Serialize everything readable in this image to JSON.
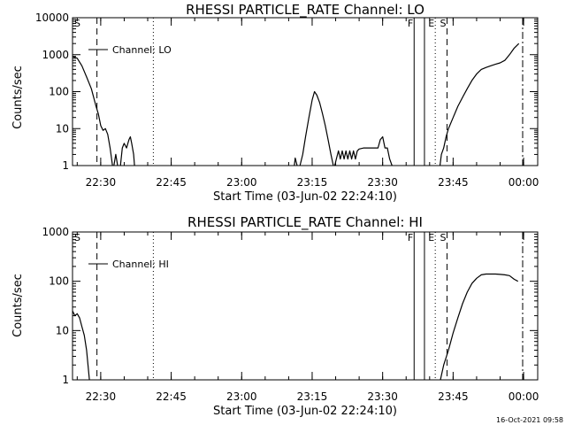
{
  "chart_data": [
    {
      "type": "line",
      "title": "RHESSI PARTICLE_RATE Channel: LO",
      "xlabel": "Start Time (03-Jun-02 22:24:10)",
      "ylabel": "Counts/sec",
      "yscale": "log",
      "ylim": [
        1,
        10000
      ],
      "xlim_minutes": [
        0,
        99
      ],
      "x_ticks": [
        {
          "t": 6,
          "label": "22:30"
        },
        {
          "t": 21,
          "label": "22:45"
        },
        {
          "t": 36,
          "label": "23:00"
        },
        {
          "t": 51,
          "label": "23:15"
        },
        {
          "t": 66,
          "label": "23:30"
        },
        {
          "t": 81,
          "label": "23:45"
        },
        {
          "t": 96,
          "label": "00:00"
        }
      ],
      "y_ticks": [
        {
          "v": 1,
          "label": "1"
        },
        {
          "v": 10,
          "label": "10"
        },
        {
          "v": 100,
          "label": "100"
        },
        {
          "v": 1000,
          "label": "1000"
        },
        {
          "v": 10000,
          "label": "10000"
        }
      ],
      "legend": {
        "label": "Channel: LO",
        "position": "top-left"
      },
      "grid": false,
      "markers": [
        {
          "t": 0,
          "label": "S",
          "style": "solid"
        },
        {
          "t": 5.2,
          "label": "",
          "style": "dashed"
        },
        {
          "t": 17.2,
          "label": "",
          "style": "dotted"
        },
        {
          "t": 72.7,
          "label": "F",
          "style": "solid"
        },
        {
          "t": 74.9,
          "label": "",
          "style": "solid"
        },
        {
          "t": 77.2,
          "label": "E",
          "style": "dotted"
        },
        {
          "t": 79.7,
          "label": "S",
          "style": "dashed"
        },
        {
          "t": 95.8,
          "label": "",
          "style": "dashdot"
        }
      ],
      "series": [
        {
          "segments": [
            [
              [
                0,
                900
              ],
              [
                1,
                800
              ],
              [
                2,
                500
              ],
              [
                3,
                250
              ],
              [
                4,
                120
              ],
              [
                5,
                40
              ],
              [
                5.5,
                25
              ],
              [
                6,
                12
              ],
              [
                6.5,
                9
              ],
              [
                7,
                10
              ],
              [
                7.5,
                7
              ],
              [
                8,
                3
              ],
              [
                8.5,
                1
              ]
            ],
            [
              [
                8.8,
                1
              ],
              [
                9.2,
                2
              ],
              [
                9.6,
                1
              ]
            ],
            [
              [
                10.2,
                1
              ],
              [
                10.6,
                3
              ],
              [
                11,
                4
              ],
              [
                11.5,
                3
              ],
              [
                12,
                5
              ],
              [
                12.3,
                6
              ],
              [
                12.6,
                4
              ],
              [
                13,
                2
              ],
              [
                13.2,
                1
              ]
            ],
            [
              [
                47.2,
                1
              ],
              [
                47.4,
                1.6
              ],
              [
                47.8,
                1
              ]
            ],
            [
              [
                48.4,
                1
              ],
              [
                49,
                2
              ],
              [
                49.6,
                6
              ],
              [
                50.3,
                20
              ],
              [
                51,
                60
              ],
              [
                51.5,
                100
              ],
              [
                52,
                80
              ],
              [
                52.6,
                50
              ],
              [
                53.2,
                25
              ],
              [
                53.8,
                12
              ],
              [
                54.4,
                5
              ],
              [
                55,
                2
              ],
              [
                55.5,
                1
              ]
            ],
            [
              [
                55.8,
                1
              ],
              [
                56.2,
                1.6
              ],
              [
                56.6,
                2.5
              ],
              [
                57,
                1.5
              ],
              [
                57.4,
                2.5
              ],
              [
                57.8,
                1.5
              ],
              [
                58.2,
                2.5
              ],
              [
                58.6,
                1.5
              ],
              [
                59,
                2.5
              ],
              [
                59.4,
                1.5
              ],
              [
                59.8,
                2.5
              ],
              [
                60.2,
                1.5
              ],
              [
                60.6,
                2.5
              ],
              [
                61,
                2.8
              ],
              [
                62,
                3
              ],
              [
                63,
                3
              ],
              [
                64,
                3
              ],
              [
                65,
                3
              ],
              [
                65.5,
                5
              ],
              [
                66,
                6
              ],
              [
                66.5,
                3
              ],
              [
                67,
                3
              ],
              [
                67.5,
                1.5
              ],
              [
                68,
                1
              ]
            ],
            [
              [
                78.2,
                1
              ],
              [
                78.5,
                2
              ],
              [
                79,
                3
              ],
              [
                79.5,
                6
              ],
              [
                80,
                10
              ],
              [
                81,
                20
              ],
              [
                82,
                40
              ],
              [
                83,
                70
              ],
              [
                84,
                120
              ],
              [
                85,
                200
              ],
              [
                86,
                300
              ],
              [
                87,
                400
              ],
              [
                88,
                450
              ],
              [
                89,
                500
              ],
              [
                90,
                550
              ],
              [
                91,
                600
              ],
              [
                92,
                700
              ],
              [
                93,
                1000
              ],
              [
                94,
                1500
              ],
              [
                95,
                2000
              ]
            ]
          ]
        }
      ]
    },
    {
      "type": "line",
      "title": "RHESSI PARTICLE_RATE Channel: HI",
      "xlabel": "Start Time (03-Jun-02 22:24:10)",
      "ylabel": "Counts/sec",
      "yscale": "log",
      "ylim": [
        1,
        1000
      ],
      "xlim_minutes": [
        0,
        99
      ],
      "x_ticks": [
        {
          "t": 6,
          "label": "22:30"
        },
        {
          "t": 21,
          "label": "22:45"
        },
        {
          "t": 36,
          "label": "23:00"
        },
        {
          "t": 51,
          "label": "23:15"
        },
        {
          "t": 66,
          "label": "23:30"
        },
        {
          "t": 81,
          "label": "23:45"
        },
        {
          "t": 96,
          "label": "00:00"
        }
      ],
      "y_ticks": [
        {
          "v": 1,
          "label": "1"
        },
        {
          "v": 10,
          "label": "10"
        },
        {
          "v": 100,
          "label": "100"
        },
        {
          "v": 1000,
          "label": "1000"
        }
      ],
      "legend": {
        "label": "Channel: HI",
        "position": "top-left"
      },
      "grid": false,
      "markers": [
        {
          "t": 0,
          "label": "S",
          "style": "solid"
        },
        {
          "t": 5.2,
          "label": "",
          "style": "dashed"
        },
        {
          "t": 17.2,
          "label": "",
          "style": "dotted"
        },
        {
          "t": 72.7,
          "label": "F",
          "style": "solid"
        },
        {
          "t": 74.9,
          "label": "",
          "style": "solid"
        },
        {
          "t": 77.2,
          "label": "E",
          "style": "dotted"
        },
        {
          "t": 79.7,
          "label": "S",
          "style": "dashed"
        },
        {
          "t": 95.8,
          "label": "",
          "style": "dashdot"
        }
      ],
      "series": [
        {
          "segments": [
            [
              [
                0,
                25
              ],
              [
                0.5,
                20
              ],
              [
                1,
                22
              ],
              [
                1.5,
                18
              ],
              [
                2,
                12
              ],
              [
                2.5,
                8
              ],
              [
                3,
                4
              ],
              [
                3.3,
                2
              ],
              [
                3.6,
                1
              ]
            ],
            [
              [
                78.3,
                1
              ],
              [
                79,
                2
              ],
              [
                80,
                4
              ],
              [
                81,
                9
              ],
              [
                82,
                18
              ],
              [
                83,
                35
              ],
              [
                84,
                60
              ],
              [
                85,
                90
              ],
              [
                86,
                115
              ],
              [
                87,
                135
              ],
              [
                88,
                140
              ],
              [
                89,
                140
              ],
              [
                90,
                140
              ],
              [
                91,
                138
              ],
              [
                92,
                135
              ],
              [
                93,
                130
              ],
              [
                94,
                110
              ],
              [
                94.8,
                100
              ]
            ]
          ]
        }
      ]
    }
  ],
  "footer": {
    "timestamp": "16-Oct-2021 09:58"
  }
}
